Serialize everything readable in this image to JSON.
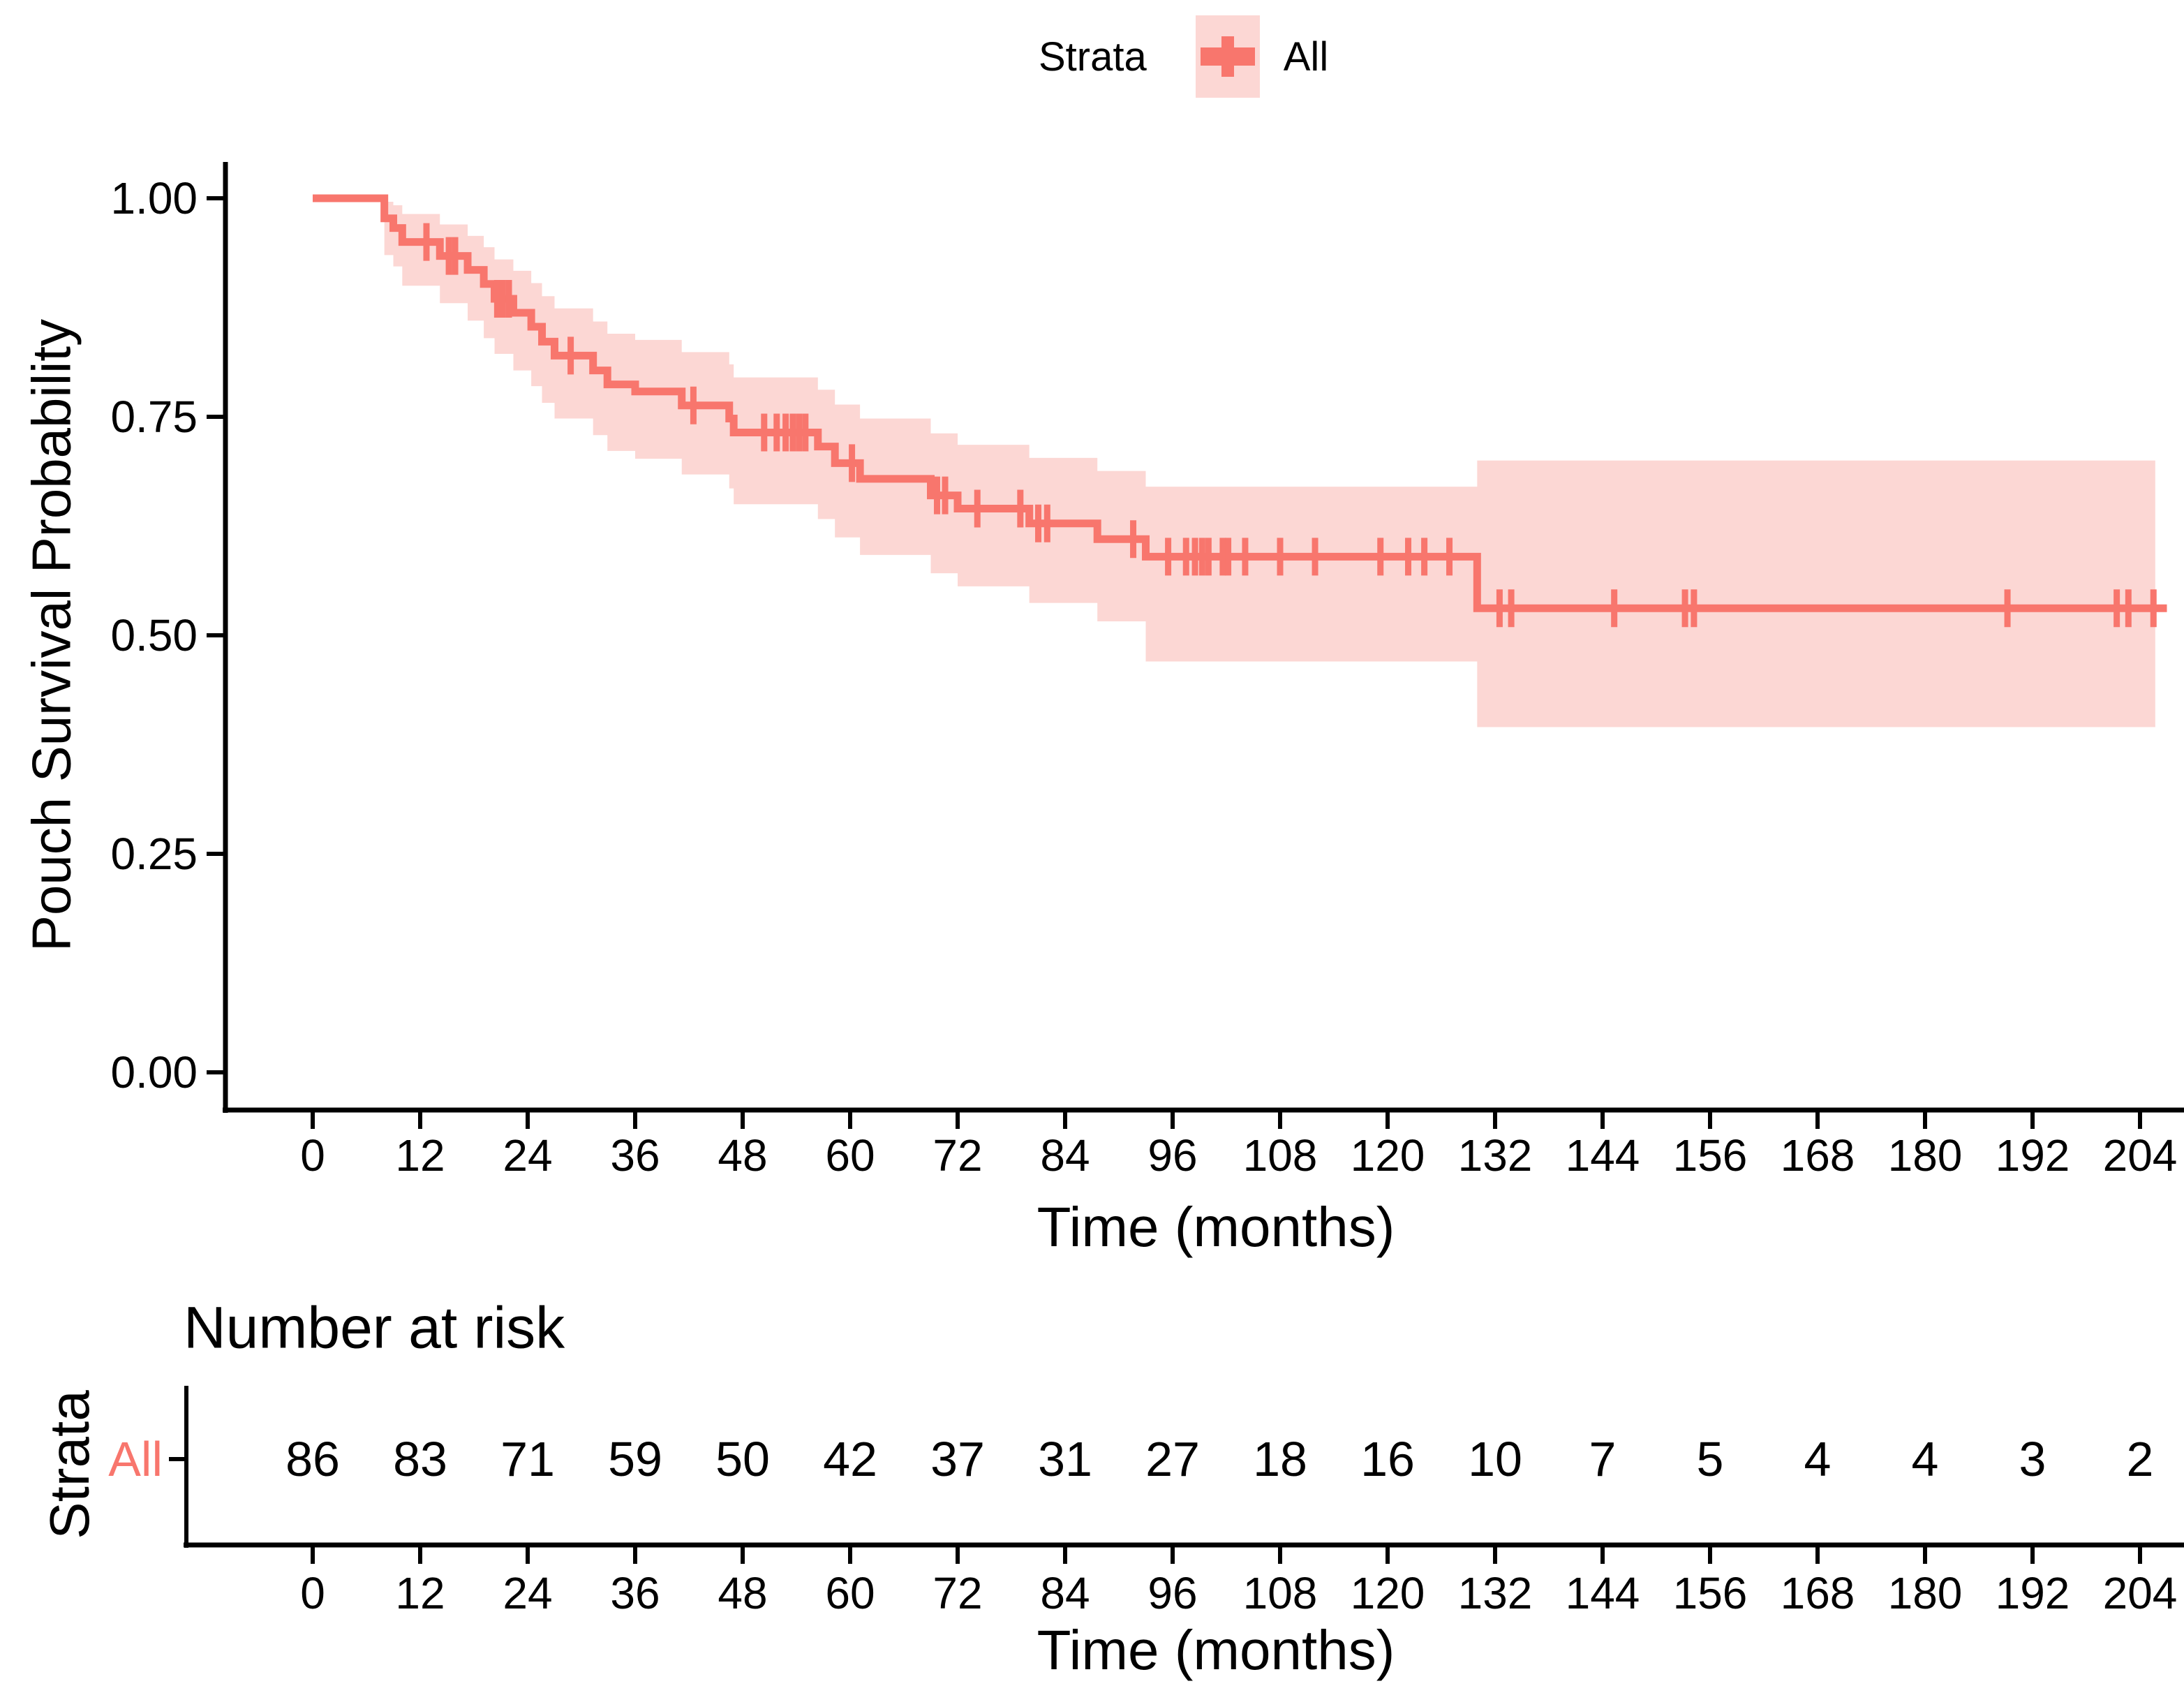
{
  "colors": {
    "stratum": "#F8766D",
    "confidence_band": "#FCD7D4",
    "axis": "#000000",
    "text": "#000000"
  },
  "chart_data": {
    "type": "line",
    "subtype": "kaplan-meier-step",
    "title": "",
    "legend_title": "Strata",
    "legend_position": "top",
    "xlabel": "Time (months)",
    "ylabel": "Pouch Survival Probability",
    "xlim": [
      0,
      207
    ],
    "ylim": [
      0,
      1
    ],
    "grid": "off",
    "x_ticks": [
      0,
      12,
      24,
      36,
      48,
      60,
      72,
      84,
      96,
      108,
      120,
      132,
      144,
      156,
      168,
      180,
      192,
      204
    ],
    "y_ticks": [
      1.0,
      0.75,
      0.5,
      0.25,
      0.0
    ],
    "y_tick_labels": [
      "1.00",
      "0.75",
      "0.50",
      "0.25",
      "0.00"
    ],
    "series": [
      {
        "name": "All",
        "color": "#F8766D",
        "ci_color": "#FCD7D4",
        "curve_end_time": 207,
        "band_end_time": 205.7,
        "steps": [
          [
            0,
            1.0
          ],
          [
            8,
            0.977
          ],
          [
            9,
            0.966
          ],
          [
            10,
            0.95
          ],
          [
            14.2,
            0.934
          ],
          [
            17.3,
            0.918
          ],
          [
            19.1,
            0.902
          ],
          [
            20.3,
            0.885
          ],
          [
            22.4,
            0.869
          ],
          [
            24.4,
            0.853
          ],
          [
            25.6,
            0.836
          ],
          [
            27,
            0.82
          ],
          [
            31.3,
            0.803
          ],
          [
            32.9,
            0.787
          ],
          [
            36,
            0.779
          ],
          [
            41.2,
            0.763
          ],
          [
            46.5,
            0.748
          ],
          [
            47,
            0.732
          ],
          [
            56.4,
            0.716
          ],
          [
            58.3,
            0.697
          ],
          [
            61.1,
            0.679
          ],
          [
            69,
            0.66
          ],
          [
            72,
            0.645
          ],
          [
            80,
            0.628
          ],
          [
            87.6,
            0.61
          ],
          [
            93,
            0.59
          ],
          [
            130,
            0.531
          ]
        ],
        "censor_times": [
          12.7,
          15.2,
          15.9,
          20.6,
          21.2,
          21.9,
          28.8,
          42.5,
          50.4,
          51.8,
          52.8,
          53.6,
          54.3,
          55.0,
          60.2,
          69.7,
          70.6,
          74.2,
          79.0,
          81.0,
          82.0,
          91.6,
          95.5,
          97.5,
          98.5,
          99.3,
          100.0,
          101.6,
          102.2,
          104.1,
          108.0,
          111.9,
          119.2,
          122.3,
          124.1,
          126.9,
          132.5,
          133.8,
          145.3,
          153.2,
          154.2,
          189.2,
          201.4,
          202.7,
          205.5
        ],
        "ci_steps": [
          [
            0,
            1.0,
            1.0
          ],
          [
            8,
            0.935,
            0.996
          ],
          [
            9,
            0.922,
            0.992
          ],
          [
            10,
            0.9,
            0.982
          ],
          [
            14.2,
            0.88,
            0.97
          ],
          [
            17.3,
            0.86,
            0.957
          ],
          [
            19.1,
            0.84,
            0.944
          ],
          [
            20.3,
            0.822,
            0.93
          ],
          [
            22.4,
            0.803,
            0.917
          ],
          [
            24.4,
            0.785,
            0.903
          ],
          [
            25.6,
            0.766,
            0.888
          ],
          [
            27,
            0.748,
            0.874
          ],
          [
            31.3,
            0.729,
            0.859
          ],
          [
            32.9,
            0.711,
            0.845
          ],
          [
            36,
            0.702,
            0.838
          ],
          [
            41.2,
            0.684,
            0.824
          ],
          [
            46.5,
            0.668,
            0.81
          ],
          [
            47,
            0.65,
            0.795
          ],
          [
            56.4,
            0.633,
            0.781
          ],
          [
            58.3,
            0.612,
            0.764
          ],
          [
            61.1,
            0.592,
            0.748
          ],
          [
            69,
            0.571,
            0.731
          ],
          [
            72,
            0.556,
            0.718
          ],
          [
            80,
            0.537,
            0.703
          ],
          [
            87.6,
            0.516,
            0.688
          ],
          [
            93,
            0.47,
            0.67
          ],
          [
            130,
            0.395,
            0.7
          ]
        ]
      }
    ],
    "risk_table": {
      "title": "Number at risk",
      "axis_title": "Strata",
      "xlabel": "Time (months)",
      "row_label": "All",
      "row_label_color": "#F8766D",
      "times": [
        0,
        12,
        24,
        36,
        48,
        60,
        72,
        84,
        96,
        108,
        120,
        132,
        144,
        156,
        168,
        180,
        192,
        204
      ],
      "counts": [
        86,
        83,
        71,
        59,
        50,
        42,
        37,
        31,
        27,
        18,
        16,
        10,
        7,
        5,
        4,
        4,
        3,
        2
      ]
    }
  }
}
